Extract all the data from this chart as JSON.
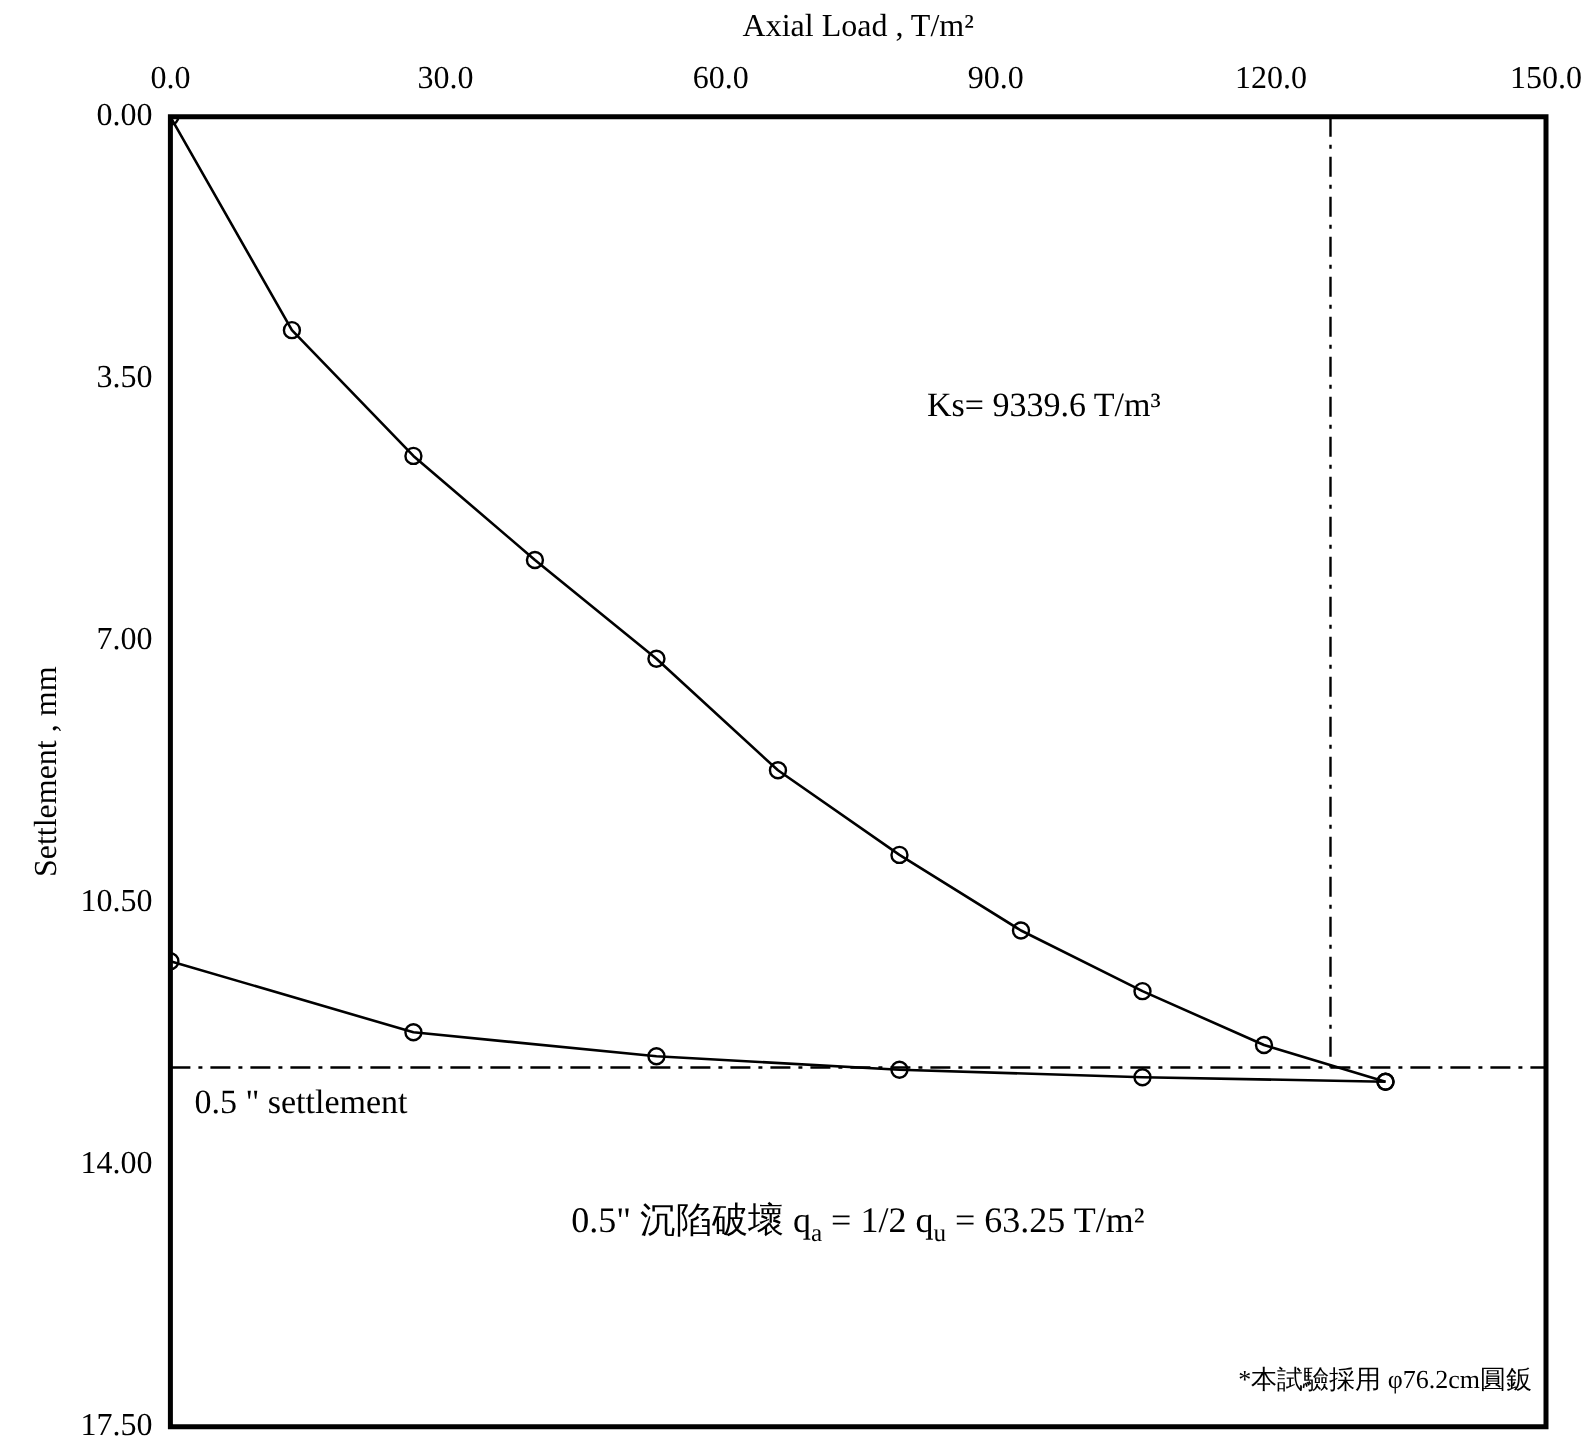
{
  "chart_data": {
    "type": "line",
    "xlabel": "Axial Load , T/m²",
    "ylabel": "Settlement , mm",
    "xlim": [
      0,
      150
    ],
    "xticks": [
      {
        "value": 0,
        "label": "0.0"
      },
      {
        "value": 30,
        "label": "30.0"
      },
      {
        "value": 60,
        "label": "60.0"
      },
      {
        "value": 90,
        "label": "90.0"
      },
      {
        "value": 120,
        "label": "120.0"
      },
      {
        "value": 150,
        "label": "150.0"
      }
    ],
    "ylim": [
      17.5,
      0
    ],
    "yticks": [
      {
        "value": 0,
        "label": "0.00"
      },
      {
        "value": 3.5,
        "label": "3.50"
      },
      {
        "value": 7,
        "label": "7.00"
      },
      {
        "value": 10.5,
        "label": "10.50"
      },
      {
        "value": 14,
        "label": "14.00"
      },
      {
        "value": 17.5,
        "label": "17.50"
      }
    ],
    "series": [
      {
        "color": "#000000",
        "x": [
          0,
          13.25,
          26.5,
          39.75,
          53,
          66.25,
          79.5,
          92.75,
          106,
          119.25,
          132.5
        ],
        "values": [
          0,
          2.85,
          4.53,
          5.92,
          7.24,
          8.73,
          9.86,
          10.87,
          11.68,
          12.4,
          12.89
        ]
      },
      {
        "color": "#000000",
        "x": [
          132.5,
          106,
          79.5,
          53,
          26.5,
          0
        ],
        "values": [
          12.89,
          12.83,
          12.73,
          12.55,
          12.23,
          11.28
        ]
      }
    ],
    "marker": "circle",
    "line_style": "solid",
    "grid": false,
    "legend": false,
    "ref_lines": [
      {
        "axis": "y",
        "value": 12.7,
        "label": "0.5 \" settlement",
        "line_style": "dashed",
        "color": "#000000"
      },
      {
        "axis": "x",
        "value": 126.5,
        "line_style": "dashed",
        "color": "#000000"
      }
    ],
    "annotations": [
      "Ks=  9339.6  T/m³",
      "0.5\" 沉陷破壞 q$_{a}$ = 1/2 q$_{u}$ =   63.25   T/m²",
      "*本試驗採用 φ76.2cm圓鈑"
    ]
  }
}
